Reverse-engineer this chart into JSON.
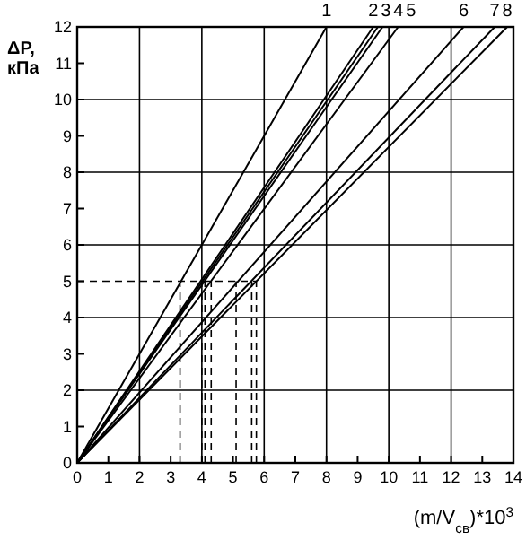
{
  "chart_data": {
    "type": "line",
    "xlabel": "(m/V$_{св}$)*10$^{3}$",
    "ylabel": "ΔP, кПа",
    "xlim": [
      0,
      14
    ],
    "ylim": [
      0,
      12
    ],
    "xticks": [
      0,
      1,
      2,
      3,
      4,
      5,
      6,
      7,
      8,
      9,
      10,
      11,
      12,
      13,
      14
    ],
    "yticks": [
      0,
      1,
      2,
      3,
      4,
      5,
      6,
      7,
      8,
      9,
      10,
      11,
      12
    ],
    "grid": true,
    "legend": false,
    "marker": "none",
    "line_style": "solid",
    "series": [
      {
        "name": "1",
        "color": "#000000",
        "x": [
          0,
          8.0
        ],
        "values": [
          0,
          12
        ]
      },
      {
        "name": "2",
        "color": "#000000",
        "x": [
          0,
          9.5
        ],
        "values": [
          0,
          12
        ]
      },
      {
        "name": "3",
        "color": "#000000",
        "x": [
          0,
          9.65
        ],
        "values": [
          0,
          12
        ]
      },
      {
        "name": "4",
        "color": "#000000",
        "x": [
          0,
          9.8
        ],
        "values": [
          0,
          12
        ]
      },
      {
        "name": "5",
        "color": "#000000",
        "x": [
          0,
          10.3
        ],
        "values": [
          0,
          12
        ]
      },
      {
        "name": "6",
        "color": "#000000",
        "x": [
          0,
          12.4
        ],
        "values": [
          0,
          12
        ]
      },
      {
        "name": "7",
        "color": "#000000",
        "x": [
          0,
          13.4
        ],
        "values": [
          0,
          12
        ]
      },
      {
        "name": "8",
        "color": "#000000",
        "x": [
          0,
          13.8
        ],
        "values": [
          0,
          12
        ]
      }
    ],
    "ref_lines": [
      {
        "axis": "y",
        "value": 5,
        "line_style": "dashed"
      },
      {
        "axis": "x",
        "value": 3.3,
        "line_style": "dashed"
      },
      {
        "axis": "x",
        "value": 4.0,
        "line_style": "dashed"
      },
      {
        "axis": "x",
        "value": 4.1,
        "line_style": "dashed"
      },
      {
        "axis": "x",
        "value": 4.3,
        "line_style": "dashed"
      },
      {
        "axis": "x",
        "value": 5.1,
        "line_style": "dashed"
      },
      {
        "axis": "x",
        "value": 5.6,
        "line_style": "dashed"
      },
      {
        "axis": "x",
        "value": 5.75,
        "line_style": "dashed"
      }
    ]
  }
}
